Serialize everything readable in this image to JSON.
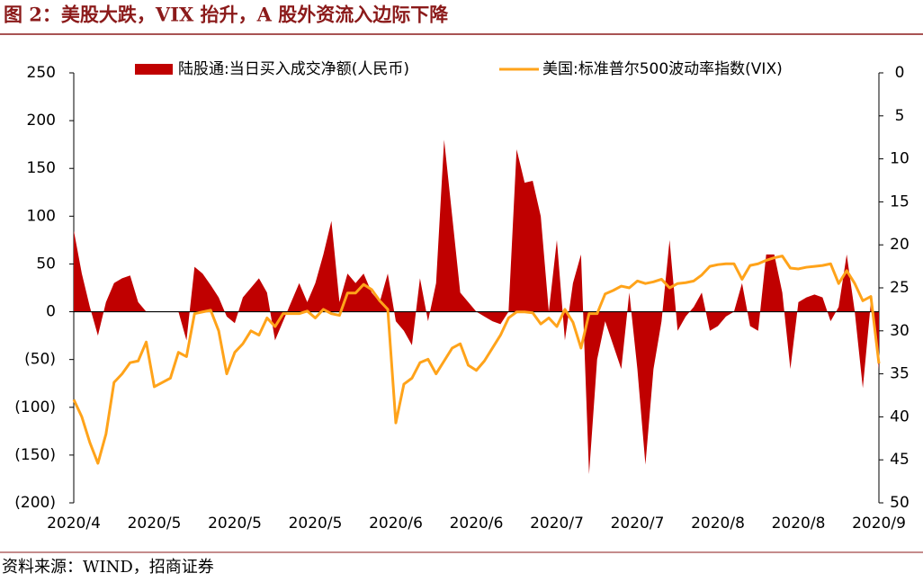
{
  "chart_data": {
    "type": "combo",
    "title": "图 2：美股大跌，VIX 抬升，A 股外资流入边际下降",
    "source": "资料来源：WIND，招商证券",
    "categories": [
      "2020/4",
      null,
      null,
      null,
      null,
      null,
      null,
      null,
      null,
      null,
      "2020/5",
      null,
      null,
      null,
      null,
      null,
      null,
      null,
      null,
      null,
      "2020/5",
      null,
      null,
      null,
      null,
      null,
      null,
      null,
      null,
      null,
      "2020/5",
      null,
      null,
      null,
      null,
      null,
      null,
      null,
      null,
      null,
      "2020/6",
      null,
      null,
      null,
      null,
      null,
      null,
      null,
      null,
      null,
      "2020/6",
      null,
      null,
      null,
      null,
      null,
      null,
      null,
      null,
      null,
      "2020/7",
      null,
      null,
      null,
      null,
      null,
      null,
      null,
      null,
      null,
      "2020/7",
      null,
      null,
      null,
      null,
      null,
      null,
      null,
      null,
      null,
      "2020/8",
      null,
      null,
      null,
      null,
      null,
      null,
      null,
      null,
      null,
      "2020/8",
      null,
      null,
      null,
      null,
      null,
      null,
      null,
      null,
      null,
      "2020/9"
    ],
    "series": [
      {
        "name": "陆股通:当日买入成交净额(人民币)",
        "type": "area",
        "color": "#c00000",
        "values": [
          85,
          40,
          5,
          -25,
          10,
          30,
          35,
          38,
          10,
          0,
          0,
          0,
          0,
          0,
          -30,
          47,
          40,
          28,
          15,
          -5,
          -12,
          15,
          25,
          35,
          20,
          -30,
          -10,
          10,
          30,
          10,
          30,
          60,
          95,
          10,
          40,
          30,
          40,
          20,
          10,
          40,
          -10,
          -20,
          -35,
          35,
          -10,
          30,
          180,
          100,
          20,
          10,
          0,
          -5,
          -10,
          -13,
          0,
          170,
          135,
          137,
          100,
          0,
          75,
          -30,
          30,
          60,
          -170,
          -50,
          -10,
          -35,
          -60,
          20,
          -60,
          -160,
          -60,
          -10,
          75,
          -20,
          -5,
          5,
          20,
          -20,
          -15,
          -5,
          0,
          30,
          -15,
          -20,
          60,
          60,
          20,
          -60,
          10,
          15,
          18,
          15,
          -10,
          5,
          60,
          0,
          -80,
          10,
          -60
        ]
      },
      {
        "name": "美国:标准普尔500波动率指数(VIX)",
        "type": "line",
        "axis": "y2",
        "color": "#ffa31a",
        "values": [
          38,
          40,
          43,
          45.4,
          42,
          36,
          35,
          33.7,
          33.5,
          31.3,
          36.5,
          36,
          35.5,
          32.5,
          33,
          28,
          27.8,
          27.6,
          30,
          35,
          32.5,
          31.5,
          30,
          30.5,
          28.5,
          29.5,
          28,
          28,
          28,
          27.7,
          28.5,
          27.5,
          28,
          28.2,
          25.6,
          25.6,
          24.6,
          25.2,
          26.5,
          27.5,
          40.7,
          36.2,
          35.5,
          33.7,
          33.3,
          35,
          33.5,
          32,
          31.5,
          34,
          34.6,
          33.5,
          32,
          30.5,
          28.5,
          27.8,
          27.8,
          27.9,
          29.2,
          28.5,
          29.5,
          27.5,
          29,
          32,
          28,
          28,
          25.7,
          25.3,
          24.8,
          25,
          24.2,
          24.5,
          24.3,
          24,
          25,
          24.5,
          24.4,
          24.2,
          23.5,
          22.5,
          22.3,
          22.2,
          22.2,
          24,
          22.4,
          22.2,
          21.8,
          21.5,
          21.3,
          22.7,
          22.8,
          22.6,
          22.5,
          22.4,
          22.2,
          24.5,
          23,
          24.5,
          26.5,
          26,
          33.8
        ]
      }
    ],
    "ylim": [
      -200,
      250
    ],
    "yticks": [
      {
        "value": -200,
        "label": "(200)"
      },
      {
        "value": -150,
        "label": "(150)"
      },
      {
        "value": -100,
        "label": "(100)"
      },
      {
        "value": -50,
        "label": "(50)"
      },
      0,
      50,
      100,
      150,
      200,
      250
    ],
    "negative_tick_color": "#c00000",
    "y2lim": [
      50,
      0
    ],
    "y2ticks": [
      0,
      5,
      10,
      15,
      20,
      25,
      30,
      35,
      40,
      45,
      50
    ],
    "grid": false,
    "legend": "top"
  }
}
